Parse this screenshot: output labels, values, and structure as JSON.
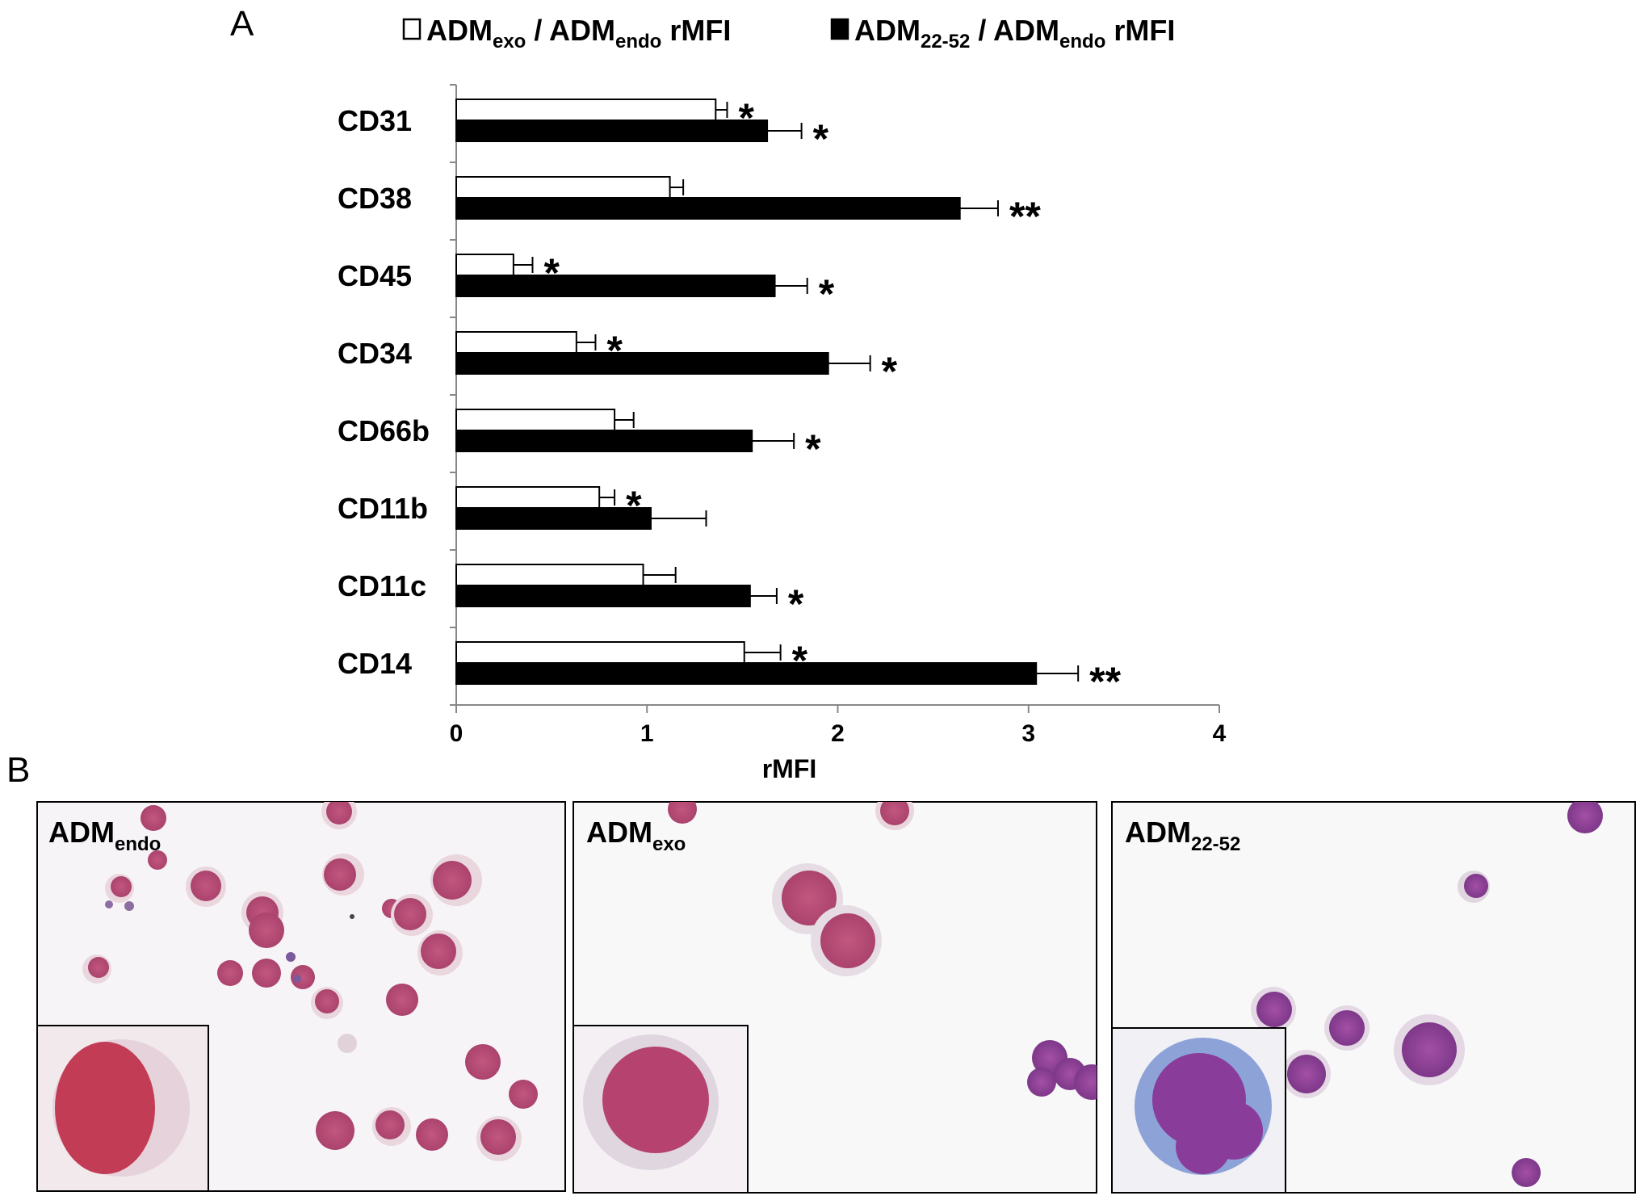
{
  "panel_a": {
    "label": "A",
    "legend": [
      {
        "swatch": "open",
        "main": "ADM",
        "sub": "exo",
        "mid": " / ADM",
        "sub2": "endo",
        "tail": " rMFI"
      },
      {
        "swatch": "filled",
        "main": "ADM",
        "sub": "22-52",
        "mid": " / ADM",
        "sub2": "endo",
        "tail": " rMFI"
      }
    ]
  },
  "panel_b": {
    "label": "B",
    "images": [
      {
        "title_main": "ADM",
        "title_sub": "endo",
        "stain": "Wright-Giemsa cytospin, pink/purple cells"
      },
      {
        "title_main": "ADM",
        "title_sub": "exo",
        "stain": "Wright-Giemsa cytospin, pink/purple cells"
      },
      {
        "title_main": "ADM",
        "title_sub": "22-52",
        "stain": "Wright-Giemsa cytospin, purple multilobed cells"
      }
    ]
  },
  "colors": {
    "open_bar": "#ffffff",
    "filled_bar": "#000000",
    "cell_pink": "#c2577e",
    "cell_purple": "#8c3f95",
    "cytoplasm": "#e9d7dd",
    "background_cell": "#f4f2f6"
  },
  "chart_data": {
    "type": "bar",
    "orientation": "horizontal",
    "categories": [
      "CD31",
      "CD38",
      "CD45",
      "CD34",
      "CD66b",
      "CD11b",
      "CD11c",
      "CD14"
    ],
    "series": [
      {
        "name": "ADMexo / ADMendo rMFI",
        "fill": "open",
        "values": [
          1.36,
          1.12,
          0.3,
          0.63,
          0.83,
          0.75,
          0.98,
          1.51
        ],
        "errors": [
          0.06,
          0.07,
          0.1,
          0.1,
          0.1,
          0.08,
          0.17,
          0.19
        ],
        "significance": [
          "*",
          "",
          "*",
          "*",
          "",
          "*",
          "",
          "*"
        ]
      },
      {
        "name": "ADM22-52 / ADMendo rMFI",
        "fill": "filled",
        "values": [
          1.63,
          2.64,
          1.67,
          1.95,
          1.55,
          1.02,
          1.54,
          3.04
        ],
        "errors": [
          0.18,
          0.2,
          0.17,
          0.22,
          0.22,
          0.29,
          0.14,
          0.22
        ],
        "significance": [
          "*",
          "**",
          "*",
          "*",
          "*",
          "",
          "*",
          "**"
        ]
      }
    ],
    "xlabel": "rMFI",
    "ylabel": "",
    "xlim": [
      0,
      4
    ],
    "xticks": [
      "0",
      "1",
      "2",
      "3",
      "4"
    ],
    "grid": false
  }
}
